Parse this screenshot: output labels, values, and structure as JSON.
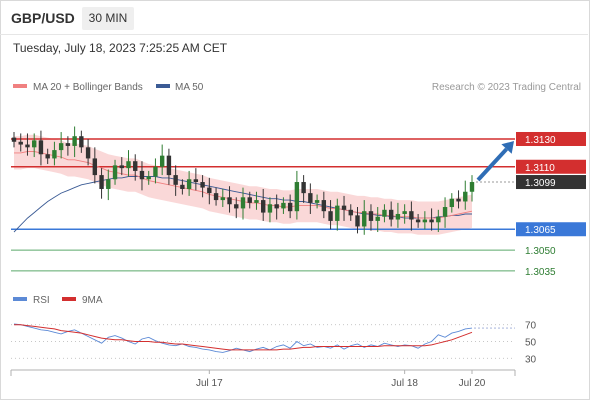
{
  "header": {
    "pair": "GBP/USD",
    "timeframe": "30 MIN",
    "timestamp": "Tuesday, July 18, 2023 7:25:25 AM CET"
  },
  "credit": "Research © 2023 Trading Central",
  "colors": {
    "candle_up": "#2e7d32",
    "candle_down": "#333333",
    "bollinger": "#f4a9a9",
    "ma20": "#f08080",
    "ma50": "#3b5b95",
    "resistance": "#d32f2f",
    "pivot": "#3a78d8",
    "support": "#5aa96a",
    "current": "#333333",
    "arrow": "#2f6db5",
    "rsi": "#5c8ad6",
    "rsi_ma": "#d32f2f"
  },
  "chart_data": [
    {
      "type": "candlestick",
      "panel": "price",
      "legend": [
        {
          "label": "MA 20 + Bollinger Bands",
          "color": "#f08080"
        },
        {
          "label": "MA 50",
          "color": "#3b5b95"
        }
      ],
      "ylim": [
        1.3027,
        1.3148
      ],
      "levels": [
        {
          "label": "1.3130",
          "value": 1.313,
          "kind": "resistance"
        },
        {
          "label": "1.3110",
          "value": 1.311,
          "kind": "resistance"
        },
        {
          "label": "1.3099",
          "value": 1.3099,
          "kind": "current"
        },
        {
          "label": "1.3065",
          "value": 1.3065,
          "kind": "pivot"
        },
        {
          "label": "1.3050",
          "value": 1.305,
          "kind": "support"
        },
        {
          "label": "1.3035",
          "value": 1.3035,
          "kind": "support"
        }
      ],
      "arrow": {
        "from": 1.3099,
        "to": 1.313
      },
      "x_ticks": [
        "Jul 17",
        "Jul 18",
        "Jul 20"
      ],
      "x_tick_index": [
        29,
        58,
        68
      ],
      "close": [
        1.3128,
        1.3126,
        1.3124,
        1.3129,
        1.3119,
        1.3116,
        1.3122,
        1.3127,
        1.3125,
        1.3132,
        1.3124,
        1.3116,
        1.3104,
        1.3094,
        1.3101,
        1.3111,
        1.3109,
        1.3114,
        1.3107,
        1.3101,
        1.3103,
        1.311,
        1.3118,
        1.3104,
        1.3097,
        1.3094,
        1.3101,
        1.3099,
        1.3095,
        1.3091,
        1.3086,
        1.3088,
        1.3083,
        1.308,
        1.3088,
        1.3084,
        1.3086,
        1.3077,
        1.3083,
        1.308,
        1.3084,
        1.3078,
        1.3099,
        1.3091,
        1.3084,
        1.3086,
        1.3078,
        1.3071,
        1.3082,
        1.3079,
        1.3075,
        1.3067,
        1.3078,
        1.3071,
        1.3074,
        1.3079,
        1.3072,
        1.3076,
        1.3078,
        1.3072,
        1.307,
        1.3072,
        1.307,
        1.3074,
        1.3081,
        1.3087,
        1.3085,
        1.3092,
        1.3099
      ],
      "ma20": [
        1.312,
        1.312,
        1.3121,
        1.3121,
        1.312,
        1.3119,
        1.3118,
        1.3117,
        1.3115,
        1.3115,
        1.3114,
        1.3113,
        1.3111,
        1.3109,
        1.3107,
        1.3106,
        1.3105,
        1.3104,
        1.3104,
        1.3102,
        1.31,
        1.3099,
        1.3098,
        1.3097,
        1.3096,
        1.3095,
        1.3094,
        1.3093,
        1.3092,
        1.309,
        1.3089,
        1.3088,
        1.3087,
        1.3086,
        1.3085,
        1.3084,
        1.3084,
        1.3083,
        1.3082,
        1.3082,
        1.3081,
        1.3081,
        1.3082,
        1.3082,
        1.3082,
        1.3082,
        1.3081,
        1.308,
        1.308,
        1.3079,
        1.3078,
        1.3077,
        1.3077,
        1.3076,
        1.3076,
        1.3075,
        1.3075,
        1.3074,
        1.3074,
        1.3074,
        1.3073,
        1.3073,
        1.3073,
        1.3073,
        1.3074,
        1.3075,
        1.3076,
        1.3077,
        1.3078
      ],
      "ma50": [
        1.3063,
        1.3068,
        1.3073,
        1.3077,
        1.3081,
        1.3085,
        1.3088,
        1.3091,
        1.3093,
        1.3095,
        1.3097,
        1.3098,
        1.3099,
        1.31,
        1.3101,
        1.3102,
        1.3102,
        1.3103,
        1.3103,
        1.3103,
        1.3103,
        1.3103,
        1.3102,
        1.3102,
        1.3101,
        1.31,
        1.3099,
        1.3098,
        1.3097,
        1.3096,
        1.3095,
        1.3094,
        1.3093,
        1.3092,
        1.3091,
        1.309,
        1.3089,
        1.3088,
        1.3087,
        1.3087,
        1.3086,
        1.3086,
        1.3085,
        1.3085,
        1.3084,
        1.3083,
        1.3082,
        1.3081,
        1.308,
        1.3079,
        1.3078,
        1.3077,
        1.3076,
        1.3076,
        1.3075,
        1.3075,
        1.3074,
        1.3074,
        1.3073,
        1.3073,
        1.3073,
        1.3073,
        1.3073,
        1.3074,
        1.3074,
        1.3075,
        1.3075,
        1.3076,
        1.3076
      ],
      "bb_width": 0.0012
    },
    {
      "type": "line",
      "panel": "rsi",
      "legend": [
        {
          "label": "RSI",
          "color": "#5c8ad6"
        },
        {
          "label": "9MA",
          "color": "#d32f2f"
        }
      ],
      "ylim": [
        22,
        78
      ],
      "y_ticks": [
        {
          "label": "70",
          "value": 70
        },
        {
          "label": "50",
          "value": 50
        },
        {
          "label": "30",
          "value": 30
        }
      ],
      "rsi": [
        71,
        70,
        68,
        66,
        64,
        63,
        61,
        59,
        62,
        64,
        60,
        56,
        52,
        48,
        55,
        57,
        54,
        50,
        47,
        53,
        55,
        51,
        48,
        46,
        45,
        47,
        44,
        43,
        41,
        40,
        38,
        37,
        39,
        42,
        40,
        38,
        41,
        43,
        40,
        44,
        46,
        42,
        50,
        45,
        47,
        43,
        44,
        42,
        46,
        41,
        45,
        47,
        43,
        46,
        44,
        48,
        46,
        44,
        46,
        45,
        42,
        47,
        50,
        58,
        55,
        60,
        62,
        65,
        66
      ],
      "ma9": [
        70,
        70,
        69,
        68,
        67,
        66,
        65,
        63,
        62,
        61,
        60,
        58,
        56,
        54,
        53,
        52,
        52,
        51,
        50,
        50,
        50,
        49,
        49,
        48,
        47,
        47,
        46,
        45,
        44,
        43,
        42,
        41,
        40,
        40,
        40,
        40,
        40,
        40,
        40,
        40,
        41,
        41,
        42,
        43,
        43,
        44,
        44,
        44,
        44,
        44,
        44,
        44,
        44,
        44,
        44,
        45,
        45,
        45,
        45,
        45,
        45,
        45,
        46,
        48,
        50,
        52,
        55,
        58,
        61
      ]
    }
  ]
}
